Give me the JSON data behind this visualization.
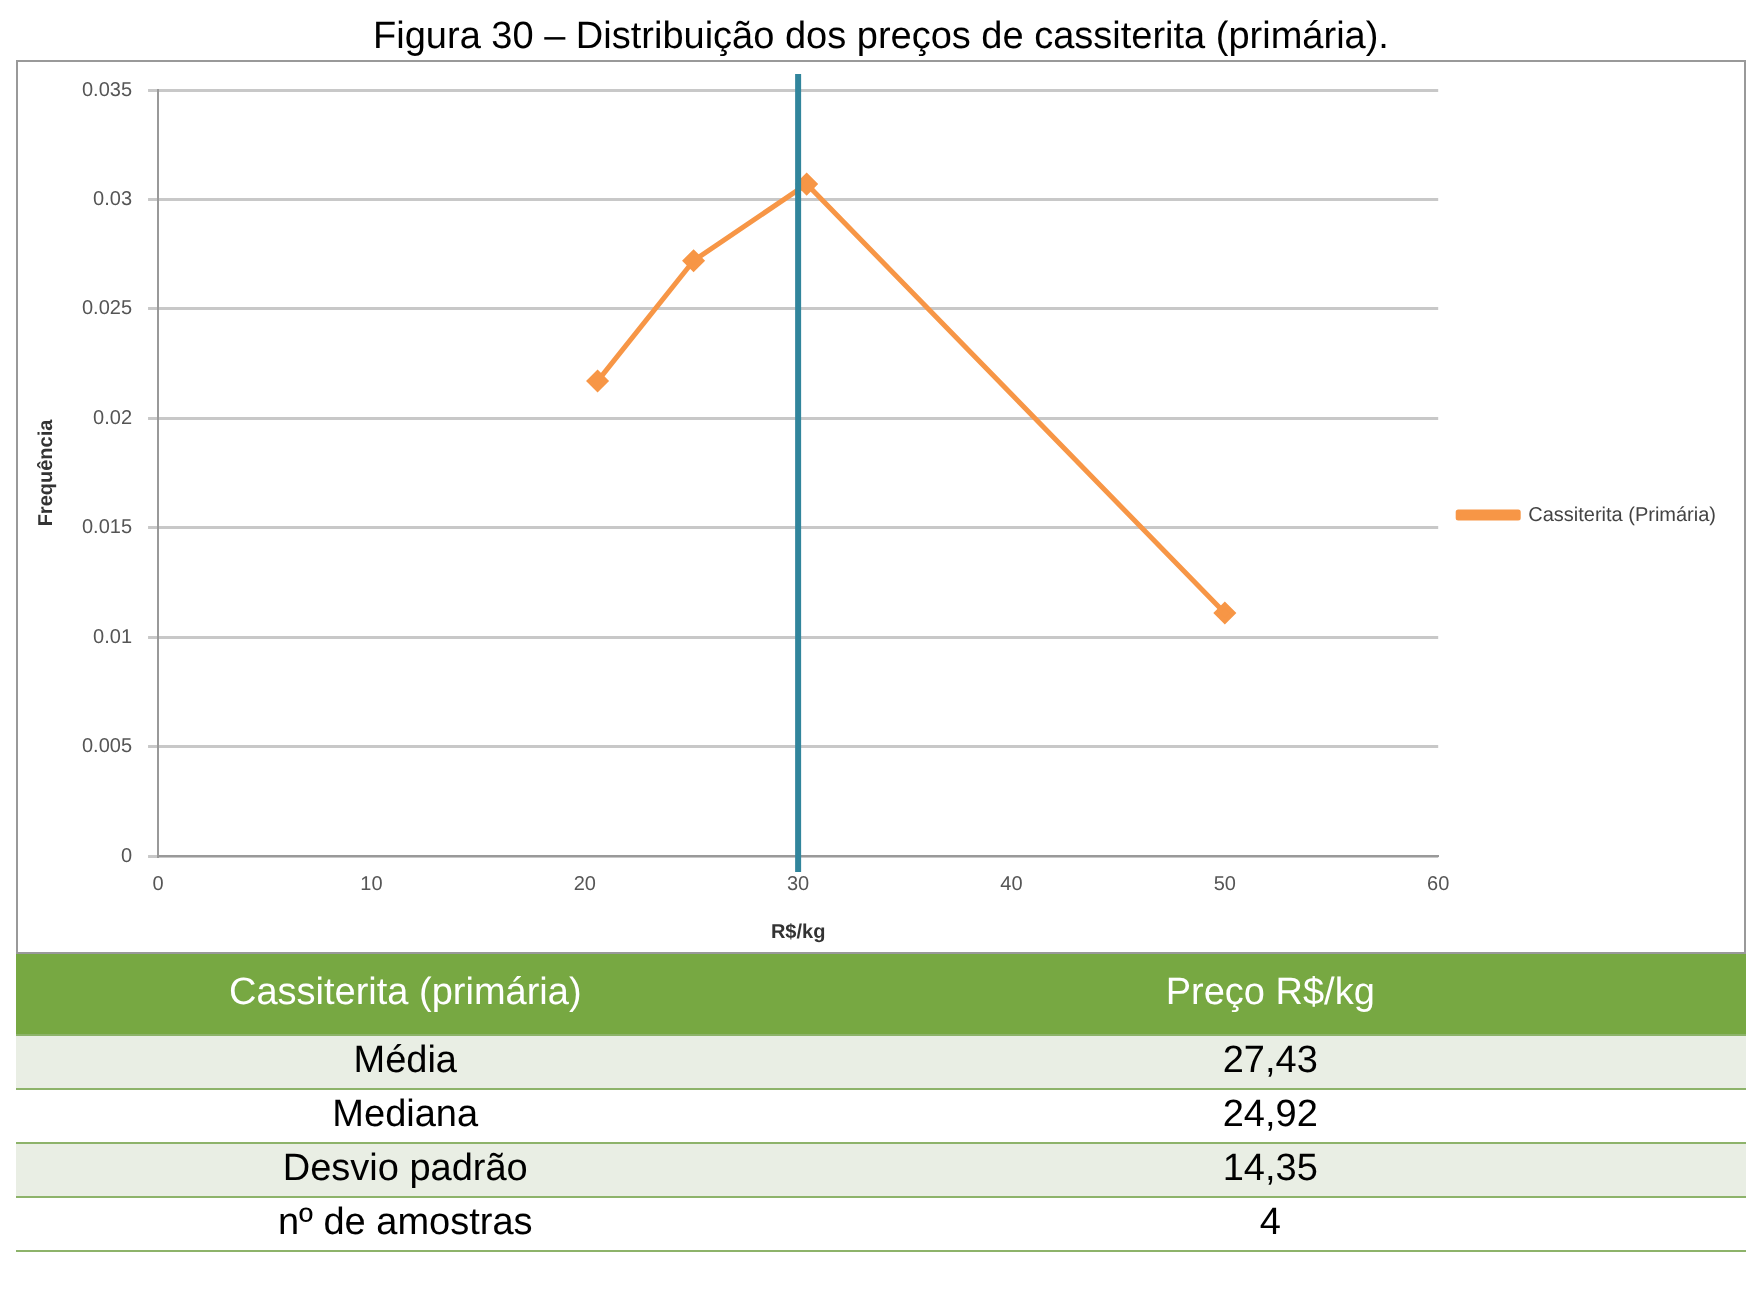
{
  "chart_data": {
    "type": "line",
    "title": "Figura 30 – Distribuição dos preços de cassiterita (primária).",
    "xlabel": "R$/kg",
    "ylabel": "Frequência",
    "series": [
      {
        "name": "Cassiterita (Primária)",
        "color": "#f79646",
        "x": [
          20.6,
          25.1,
          30.4,
          50.0
        ],
        "values": [
          0.0217,
          0.0272,
          0.0307,
          0.0111
        ]
      }
    ],
    "xlim": [
      0,
      60
    ],
    "xticks": [
      0,
      10,
      20,
      30,
      40,
      50,
      60
    ],
    "ylim": [
      0,
      0.035
    ],
    "yticks": [
      0,
      0.005,
      0.01,
      0.015,
      0.02,
      0.025,
      0.03,
      0.035
    ],
    "ref_lines": [
      {
        "axis": "x",
        "value": 30,
        "color": "#31859c"
      }
    ],
    "grid": "y",
    "legend": "right",
    "marker": "diamond",
    "line_style": "solid",
    "annotations": [
      "Cassiterita (primária)",
      "Preço R$/kg",
      "Média",
      "27,43",
      "Mediana",
      "24,92",
      "Desvio padrão",
      "14,35",
      "nº de amostras",
      "4"
    ]
  }
}
